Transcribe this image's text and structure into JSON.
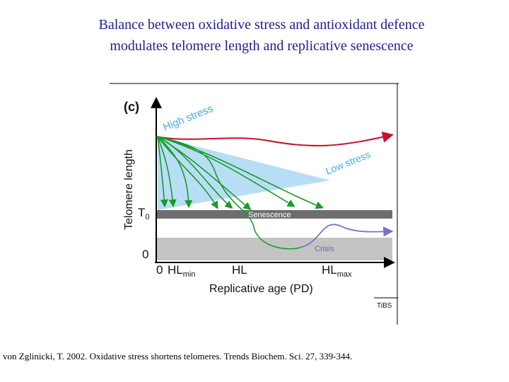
{
  "title": {
    "line1": "Balance between oxidative stress and antioxidant defence",
    "line2": "modulates telomere length and replicative senescence"
  },
  "figure": {
    "panel_label": "(c)",
    "y_axis_label": "Telomere length",
    "x_axis_label": "Replicative age (PD)",
    "tick_T0": "T",
    "tick_T0_sub": "0",
    "tick_zero_y": "0",
    "tick_zero_x": "0",
    "tick_HLmin": "HL",
    "tick_HLmin_sub": "min",
    "tick_HL": "HL",
    "tick_HLmax": "HL",
    "tick_HLmax_sub": "max",
    "high_stress_label": "High stress",
    "low_stress_label": "Low stress",
    "senescence_label": "Senescence",
    "crisis_label": "Crisis",
    "journal_mark": "TiBS",
    "colors": {
      "high_stress_curve": "#c8102e",
      "low_stress_wedge": "#b8def5",
      "green_curves": "#1a9a2a",
      "senescence_band": "#6e6e6e",
      "crisis_band": "#c4c4c4",
      "crisis_curve": "#7a72c8",
      "label_blue": "#4aa8e0"
    }
  },
  "citation": "von Zglinicki, T. 2002. Oxidative stress shortens telomeres. Trends Biochem. Sci. 27, 339-344."
}
